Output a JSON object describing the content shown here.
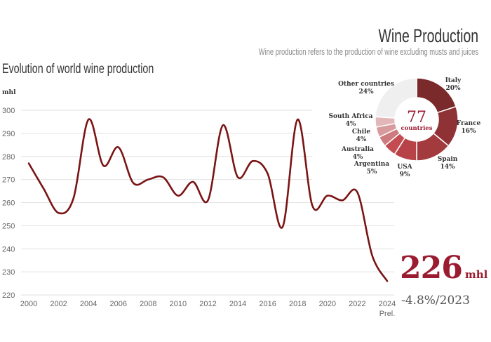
{
  "header": {
    "title": "Wine Production",
    "subtitle": "Wine production refers to the production of wine excluding musts and juices"
  },
  "chart_data": [
    {
      "type": "line",
      "title": "Evolution of world wine production",
      "ylabel": "mhl",
      "ylim": [
        220,
        300
      ],
      "yticks": [
        220,
        230,
        240,
        250,
        260,
        270,
        280,
        290,
        300
      ],
      "xticks": [
        "2000",
        "2002",
        "2004",
        "2006",
        "2008",
        "2010",
        "2012",
        "2014",
        "2016",
        "2018",
        "2020",
        "2022",
        "2024"
      ],
      "xtick_note": "Prel.",
      "grid": true,
      "color": "#7a1414",
      "x": [
        2000,
        2001,
        2002,
        2003,
        2004,
        2005,
        2006,
        2007,
        2008,
        2009,
        2010,
        2011,
        2012,
        2013,
        2014,
        2015,
        2016,
        2017,
        2018,
        2019,
        2020,
        2021,
        2022,
        2023,
        2024
      ],
      "values": [
        277,
        266,
        255.5,
        262,
        296,
        276,
        284,
        268.5,
        270,
        271,
        263,
        269,
        261,
        293.5,
        271,
        278,
        272.5,
        249.5,
        296,
        258.5,
        263,
        261,
        264.5,
        237,
        226
      ]
    },
    {
      "type": "pie",
      "donut": true,
      "center_value": "77",
      "center_label": "countries",
      "slices": [
        {
          "label": "Italy",
          "value": 20,
          "text": "20%",
          "color": "#7b2a2b"
        },
        {
          "label": "France",
          "value": 16,
          "text": "16%",
          "color": "#8f3235"
        },
        {
          "label": "Spain",
          "value": 14,
          "text": "14%",
          "color": "#a33a3d"
        },
        {
          "label": "USA",
          "value": 9,
          "text": "9%",
          "color": "#b74348"
        },
        {
          "label": "Argentina",
          "value": 5,
          "text": "5%",
          "color": "#c44b50"
        },
        {
          "label": "Australia",
          "value": 4,
          "text": "4%",
          "color": "#cd7b7e"
        },
        {
          "label": "Chile",
          "value": 4,
          "text": "4%",
          "color": "#d89b9d"
        },
        {
          "label": "South Africa",
          "value": 4,
          "text": "4%",
          "color": "#e3b6b7"
        },
        {
          "label": "Other countries",
          "value": 24,
          "text": "24%",
          "color": "#efefef"
        }
      ]
    }
  ],
  "kpi": {
    "value": "226",
    "unit": "mhl",
    "change": "-4.8%/2023",
    "accent": "#9b1b30"
  }
}
